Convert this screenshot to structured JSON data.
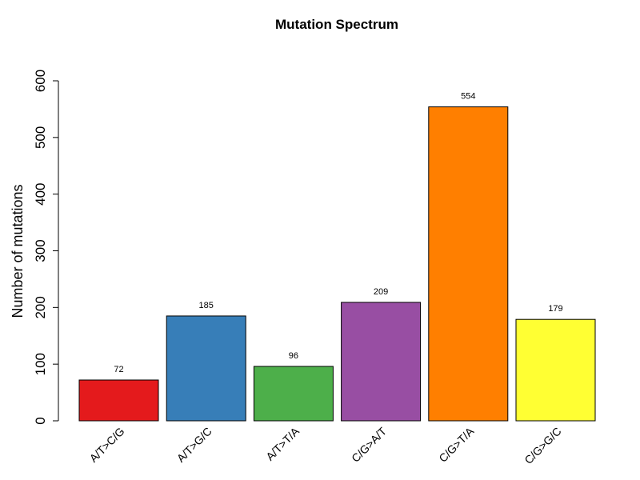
{
  "chart_data": {
    "type": "bar",
    "title": "Mutation Spectrum",
    "xlabel": "",
    "ylabel": "Number of mutations",
    "ylim": [
      0,
      600
    ],
    "yticks": [
      0,
      100,
      200,
      300,
      400,
      500,
      600
    ],
    "categories": [
      "A/T>C/G",
      "A/T>G/C",
      "A/T>T/A",
      "C/G>A/T",
      "C/G>T/A",
      "C/G>G/C"
    ],
    "values": [
      72,
      185,
      96,
      209,
      554,
      179
    ],
    "data_labels": [
      "72",
      "185",
      "96",
      "209",
      "554",
      "179"
    ],
    "colors": [
      "#e41a1c",
      "#377eb8",
      "#4daf4a",
      "#984ea3",
      "#ff7f00",
      "#ffff33"
    ],
    "grid": false,
    "legend": "none"
  }
}
